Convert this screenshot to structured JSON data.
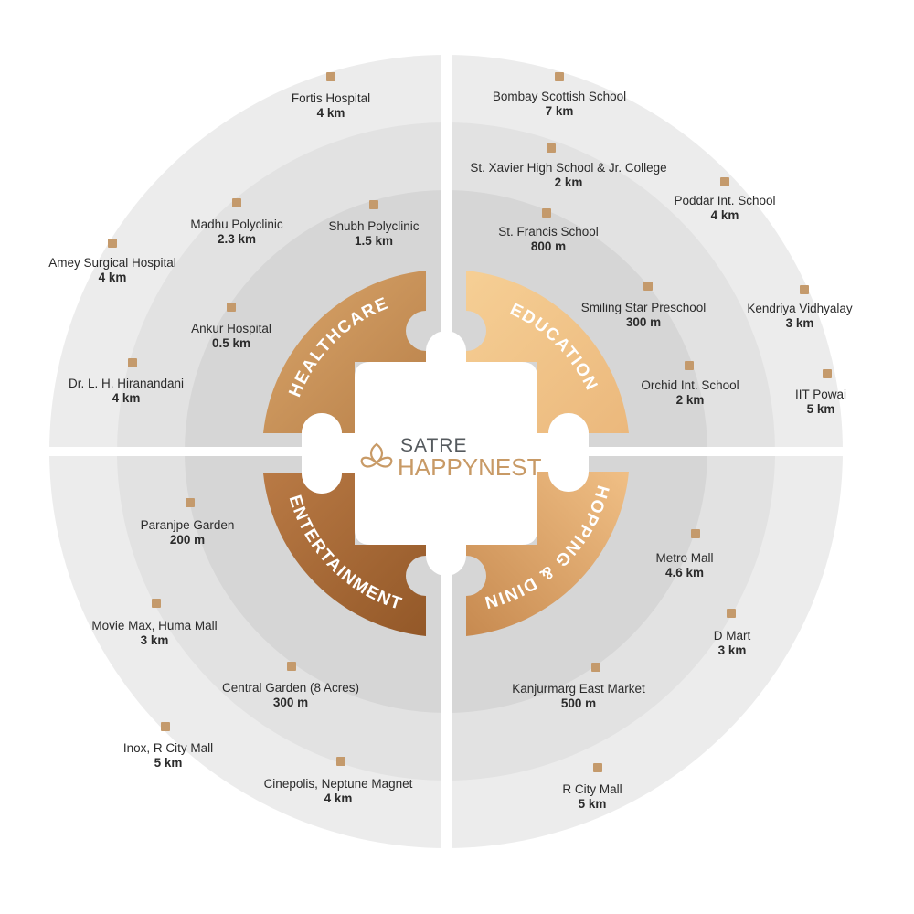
{
  "brand": {
    "line1": "SATRE",
    "line2": "HAPPYNEST"
  },
  "colors": {
    "ring_outer": "#ececec",
    "ring_middle": "#e2e2e2",
    "ring_inner": "#d6d6d6",
    "marker": "#c49a6c",
    "education": "#f0c48a",
    "healthcare": "#c8935a",
    "shopping": "#e6ad72",
    "entertainment": "#a8693a",
    "brand_text": "#555a5e",
    "brand_accent": "#c89a66"
  },
  "categories": [
    {
      "id": "healthcare",
      "label": "HEALTHCARE"
    },
    {
      "id": "education",
      "label": "EDUCATION"
    },
    {
      "id": "shopping",
      "label": "SHOPPING & DINING"
    },
    {
      "id": "entertainment",
      "label": "ENTERTAINMENT"
    }
  ],
  "places": [
    {
      "name": "Fortis Hospital",
      "distance": "4 km",
      "category": "healthcare"
    },
    {
      "name": "Madhu Polyclinic",
      "distance": "2.3 km",
      "category": "healthcare"
    },
    {
      "name": "Shubh Polyclinic",
      "distance": "1.5 km",
      "category": "healthcare"
    },
    {
      "name": "Amey Surgical Hospital",
      "distance": "4 km",
      "category": "healthcare"
    },
    {
      "name": "Ankur Hospital",
      "distance": "0.5 km",
      "category": "healthcare"
    },
    {
      "name": "Dr. L. H. Hiranandani",
      "distance": "4 km",
      "category": "healthcare"
    },
    {
      "name": "Bombay Scottish School",
      "distance": "7 km",
      "category": "education"
    },
    {
      "name": "St. Xavier High School & Jr. College",
      "distance": "2 km",
      "category": "education"
    },
    {
      "name": "Poddar Int. School",
      "distance": "4 km",
      "category": "education"
    },
    {
      "name": "St. Francis School",
      "distance": "800 m",
      "category": "education"
    },
    {
      "name": "Smiling Star Preschool",
      "distance": "300 m",
      "category": "education"
    },
    {
      "name": "Kendriya Vidhyalay",
      "distance": "3 km",
      "category": "education"
    },
    {
      "name": "Orchid Int. School",
      "distance": "2 km",
      "category": "education"
    },
    {
      "name": "IIT Powai",
      "distance": "5 km",
      "category": "education"
    },
    {
      "name": "Paranjpe Garden",
      "distance": "200 m",
      "category": "entertainment"
    },
    {
      "name": "Movie Max, Huma Mall",
      "distance": "3 km",
      "category": "entertainment"
    },
    {
      "name": "Central Garden (8 Acres)",
      "distance": "300 m",
      "category": "entertainment"
    },
    {
      "name": "Inox, R City Mall",
      "distance": "5 km",
      "category": "entertainment"
    },
    {
      "name": "Cinepolis, Neptune Magnet",
      "distance": "4 km",
      "category": "entertainment"
    },
    {
      "name": "Metro Mall",
      "distance": "4.6 km",
      "category": "shopping"
    },
    {
      "name": "D Mart",
      "distance": "3 km",
      "category": "shopping"
    },
    {
      "name": "Kanjurmarg East Market",
      "distance": "500 m",
      "category": "shopping"
    },
    {
      "name": "R City Mall",
      "distance": "5 km",
      "category": "shopping"
    }
  ]
}
